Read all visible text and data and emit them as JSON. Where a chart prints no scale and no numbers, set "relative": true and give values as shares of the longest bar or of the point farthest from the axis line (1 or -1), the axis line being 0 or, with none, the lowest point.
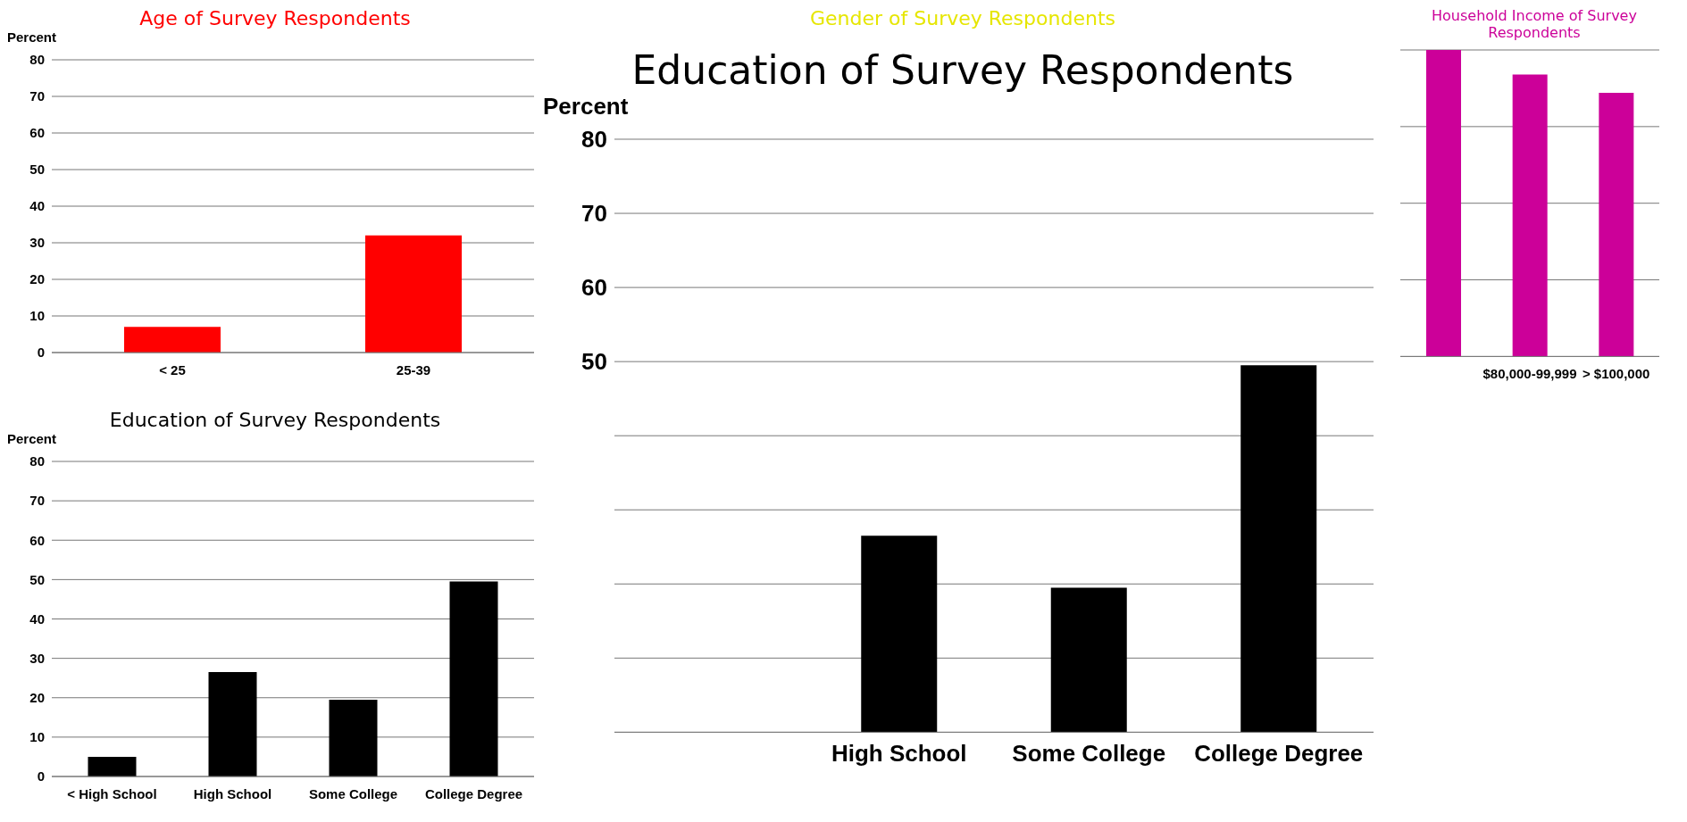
{
  "chart_data": [
    {
      "type": "bar",
      "title": "Age of Survey Respondents",
      "ylabel": "Percent",
      "categories": [
        "< 25",
        "25-39"
      ],
      "values": [
        7,
        32
      ],
      "color": "#ff0000",
      "ylim": [
        0,
        80
      ],
      "yticks": [
        0,
        10,
        20,
        30,
        40,
        50,
        60,
        70,
        80
      ],
      "grid": "y"
    },
    {
      "type": "other",
      "title": "Gender of Survey Respondents"
    },
    {
      "type": "bar",
      "title": "Household Income of Survey Respondents",
      "categories": [
        null,
        "$80,000-99,999",
        "> $100,000"
      ],
      "values": [
        1,
        0.92,
        0.86
      ],
      "color": "#cc0099",
      "relative": true,
      "grid": "y"
    },
    {
      "type": "bar",
      "title": "Education of Survey Respondents",
      "ylabel": "Percent",
      "categories": [
        "< High School",
        "High School",
        "Some College",
        "College Degree"
      ],
      "values": [
        5,
        26.5,
        19.5,
        49.5
      ],
      "color": "#000000",
      "ylim": [
        0,
        80
      ],
      "yticks": [
        0,
        10,
        20,
        30,
        40,
        50,
        60,
        70,
        80
      ],
      "grid": "y"
    },
    {
      "type": "bar",
      "title": "Education of Survey Respondents",
      "ylabel": "Percent",
      "categories": [
        null,
        "High School",
        "Some College",
        "College Degree"
      ],
      "values": [
        null,
        26.5,
        19.5,
        49.5
      ],
      "color": "#000000",
      "ylim": [
        0,
        80
      ],
      "yticks": [
        {
          "value": 0,
          "label": null
        },
        {
          "value": 10,
          "label": null
        },
        {
          "value": 20,
          "label": null
        },
        {
          "value": 30,
          "label": null
        },
        {
          "value": 40,
          "label": null
        },
        50,
        60,
        70,
        80
      ],
      "grid": "y"
    }
  ]
}
